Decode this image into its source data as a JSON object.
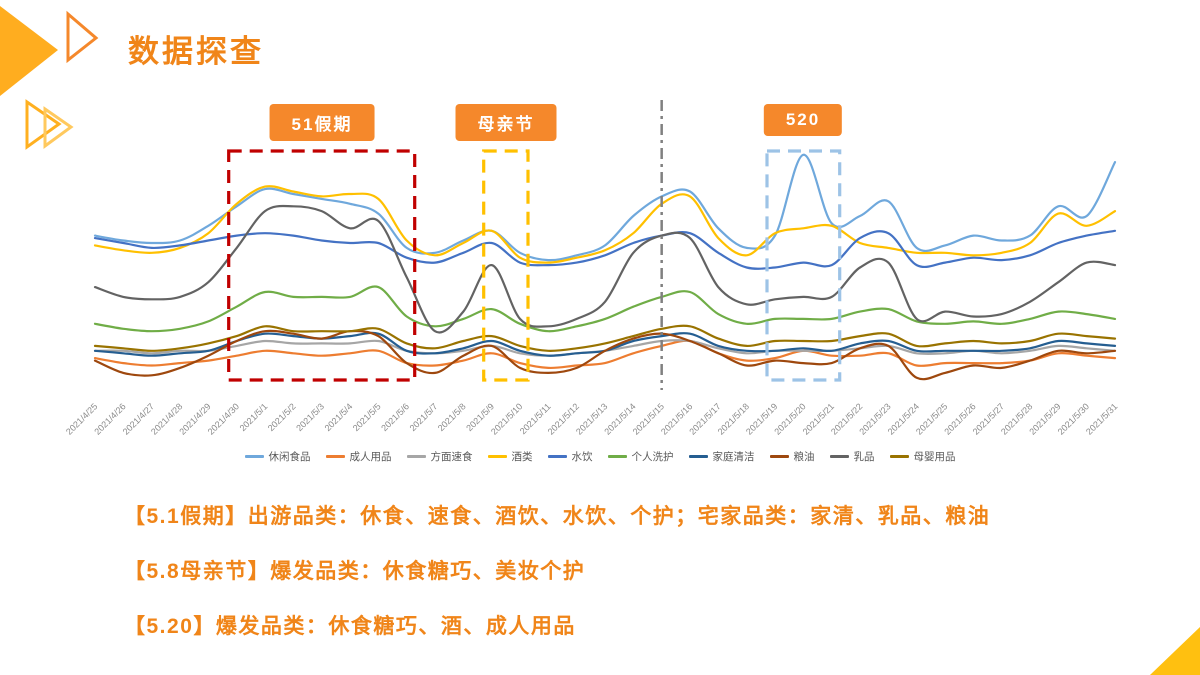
{
  "title": "数据探查",
  "notes": [
    "【5.1假期】出游品类：休食、速食、酒饮、水饮、个护；宅家品类：家清、乳品、粮油",
    "【5.8母亲节】爆发品类：休食糖巧、美妆个护",
    "【5.20】爆发品类：休食糖巧、酒、成人用品"
  ],
  "colors": {
    "accent_orange": "#F08519",
    "callout_bg": "#F5882B",
    "deco_yellow": "#FFB020",
    "axis_label": "#8A8A8A"
  },
  "chart_data": {
    "type": "line",
    "title": "",
    "xlabel": "",
    "ylabel": "",
    "y_axis_visible": false,
    "grid": false,
    "legend_position": "bottom",
    "x_tick_rotation": -45,
    "x": [
      "2021/4/25",
      "2021/4/26",
      "2021/4/27",
      "2021/4/28",
      "2021/4/29",
      "2021/4/30",
      "2021/5/1",
      "2021/5/2",
      "2021/5/3",
      "2021/5/4",
      "2021/5/5",
      "2021/5/6",
      "2021/5/7",
      "2021/5/8",
      "2021/5/9",
      "2021/5/10",
      "2021/5/11",
      "2021/5/12",
      "2021/5/13",
      "2021/5/14",
      "2021/5/15",
      "2021/5/16",
      "2021/5/17",
      "2021/5/18",
      "2021/5/19",
      "2021/5/20",
      "2021/5/21",
      "2021/5/22",
      "2021/5/23",
      "2021/5/24",
      "2021/5/25",
      "2021/5/26",
      "2021/5/27",
      "2021/5/28",
      "2021/5/29",
      "2021/5/30",
      "2021/5/31"
    ],
    "series": [
      {
        "name": "休闲食品",
        "color": "#6FA8DC",
        "values": [
          63,
          61,
          60,
          61,
          67,
          75,
          82,
          80,
          78,
          76,
          72,
          58,
          56,
          61,
          65,
          56,
          53,
          55,
          59,
          71,
          79,
          81,
          66,
          58,
          63,
          96,
          68,
          71,
          77,
          58,
          59,
          63,
          61,
          63,
          75,
          71,
          93
        ]
      },
      {
        "name": "成人用品",
        "color": "#ED7D31",
        "values": [
          13,
          11,
          10,
          11,
          12,
          14,
          16,
          15,
          14,
          15,
          16,
          11,
          10,
          12,
          15,
          11,
          9,
          10,
          11,
          15,
          18,
          20,
          15,
          12,
          13,
          16,
          14,
          14,
          15,
          10,
          11,
          11,
          11,
          12,
          15,
          14,
          13
        ]
      },
      {
        "name": "方面速食",
        "color": "#A6A6A6",
        "values": [
          16,
          16,
          15,
          16,
          16,
          18,
          20,
          19,
          19,
          19,
          20,
          16,
          15,
          16,
          18,
          15,
          14,
          15,
          16,
          18,
          20,
          20,
          17,
          15,
          16,
          16,
          16,
          17,
          18,
          15,
          15,
          16,
          15,
          16,
          18,
          17,
          16
        ]
      },
      {
        "name": "酒类",
        "color": "#FFC000",
        "values": [
          59,
          57,
          56,
          58,
          64,
          76,
          83,
          81,
          79,
          80,
          78,
          61,
          55,
          60,
          65,
          54,
          52,
          54,
          57,
          64,
          76,
          79,
          62,
          55,
          64,
          66,
          67,
          60,
          58,
          56,
          56,
          55,
          56,
          60,
          72,
          67,
          73
        ]
      },
      {
        "name": "水饮",
        "color": "#4472C4",
        "values": [
          62,
          60,
          58,
          59,
          61,
          63,
          64,
          63,
          61,
          60,
          60,
          54,
          52,
          56,
          60,
          52,
          51,
          52,
          55,
          60,
          63,
          64,
          56,
          50,
          50,
          52,
          51,
          62,
          64,
          51,
          52,
          54,
          53,
          55,
          60,
          63,
          65
        ]
      },
      {
        "name": "个人洗护",
        "color": "#70AD47",
        "values": [
          27,
          25,
          24,
          25,
          28,
          34,
          40,
          38,
          38,
          38,
          42,
          30,
          26,
          29,
          33,
          27,
          24,
          26,
          29,
          34,
          38,
          40,
          31,
          27,
          29,
          29,
          29,
          32,
          33,
          28,
          27,
          28,
          27,
          29,
          32,
          31,
          29
        ]
      },
      {
        "name": "家庭清洁",
        "color": "#255E91",
        "values": [
          16,
          15,
          14,
          15,
          16,
          20,
          23,
          22,
          21,
          22,
          23,
          16,
          15,
          17,
          20,
          16,
          14,
          15,
          16,
          20,
          22,
          23,
          18,
          16,
          16,
          17,
          16,
          19,
          20,
          16,
          16,
          16,
          16,
          17,
          20,
          19,
          18
        ]
      },
      {
        "name": "粮油",
        "color": "#9E480E",
        "values": [
          12,
          7,
          6,
          9,
          14,
          20,
          24,
          23,
          21,
          24,
          22,
          11,
          7,
          14,
          18,
          9,
          7,
          9,
          16,
          21,
          23,
          20,
          15,
          10,
          12,
          11,
          11,
          17,
          18,
          5,
          7,
          10,
          9,
          12,
          16,
          15,
          16
        ]
      },
      {
        "name": "乳品",
        "color": "#636363",
        "values": [
          42,
          38,
          37,
          38,
          44,
          58,
          73,
          75,
          73,
          66,
          69,
          46,
          24,
          32,
          51,
          29,
          26,
          29,
          36,
          56,
          63,
          62,
          42,
          35,
          37,
          38,
          38,
          50,
          52,
          29,
          32,
          30,
          31,
          36,
          44,
          52,
          51
        ]
      },
      {
        "name": "母婴用品",
        "color": "#997300",
        "values": [
          18,
          17,
          16,
          17,
          19,
          22,
          26,
          24,
          24,
          24,
          25,
          19,
          17,
          20,
          22,
          18,
          16,
          17,
          19,
          22,
          25,
          26,
          21,
          18,
          20,
          20,
          20,
          22,
          23,
          18,
          19,
          20,
          19,
          20,
          23,
          22,
          21
        ]
      }
    ],
    "annotations": [
      {
        "kind": "box",
        "label": "51假期",
        "from": "2021/4/30",
        "to": "2021/5/6",
        "color": "#C00000"
      },
      {
        "kind": "box",
        "label": "母亲节",
        "from": "2021/5/9",
        "to": "2021/5/10",
        "color": "#FFC000"
      },
      {
        "kind": "box",
        "label": "520",
        "from": "2021/5/19",
        "to": "2021/5/21",
        "color": "#9DC3E6"
      },
      {
        "kind": "vline",
        "label": "",
        "at": "2021/5/15",
        "color": "#808080"
      }
    ]
  }
}
